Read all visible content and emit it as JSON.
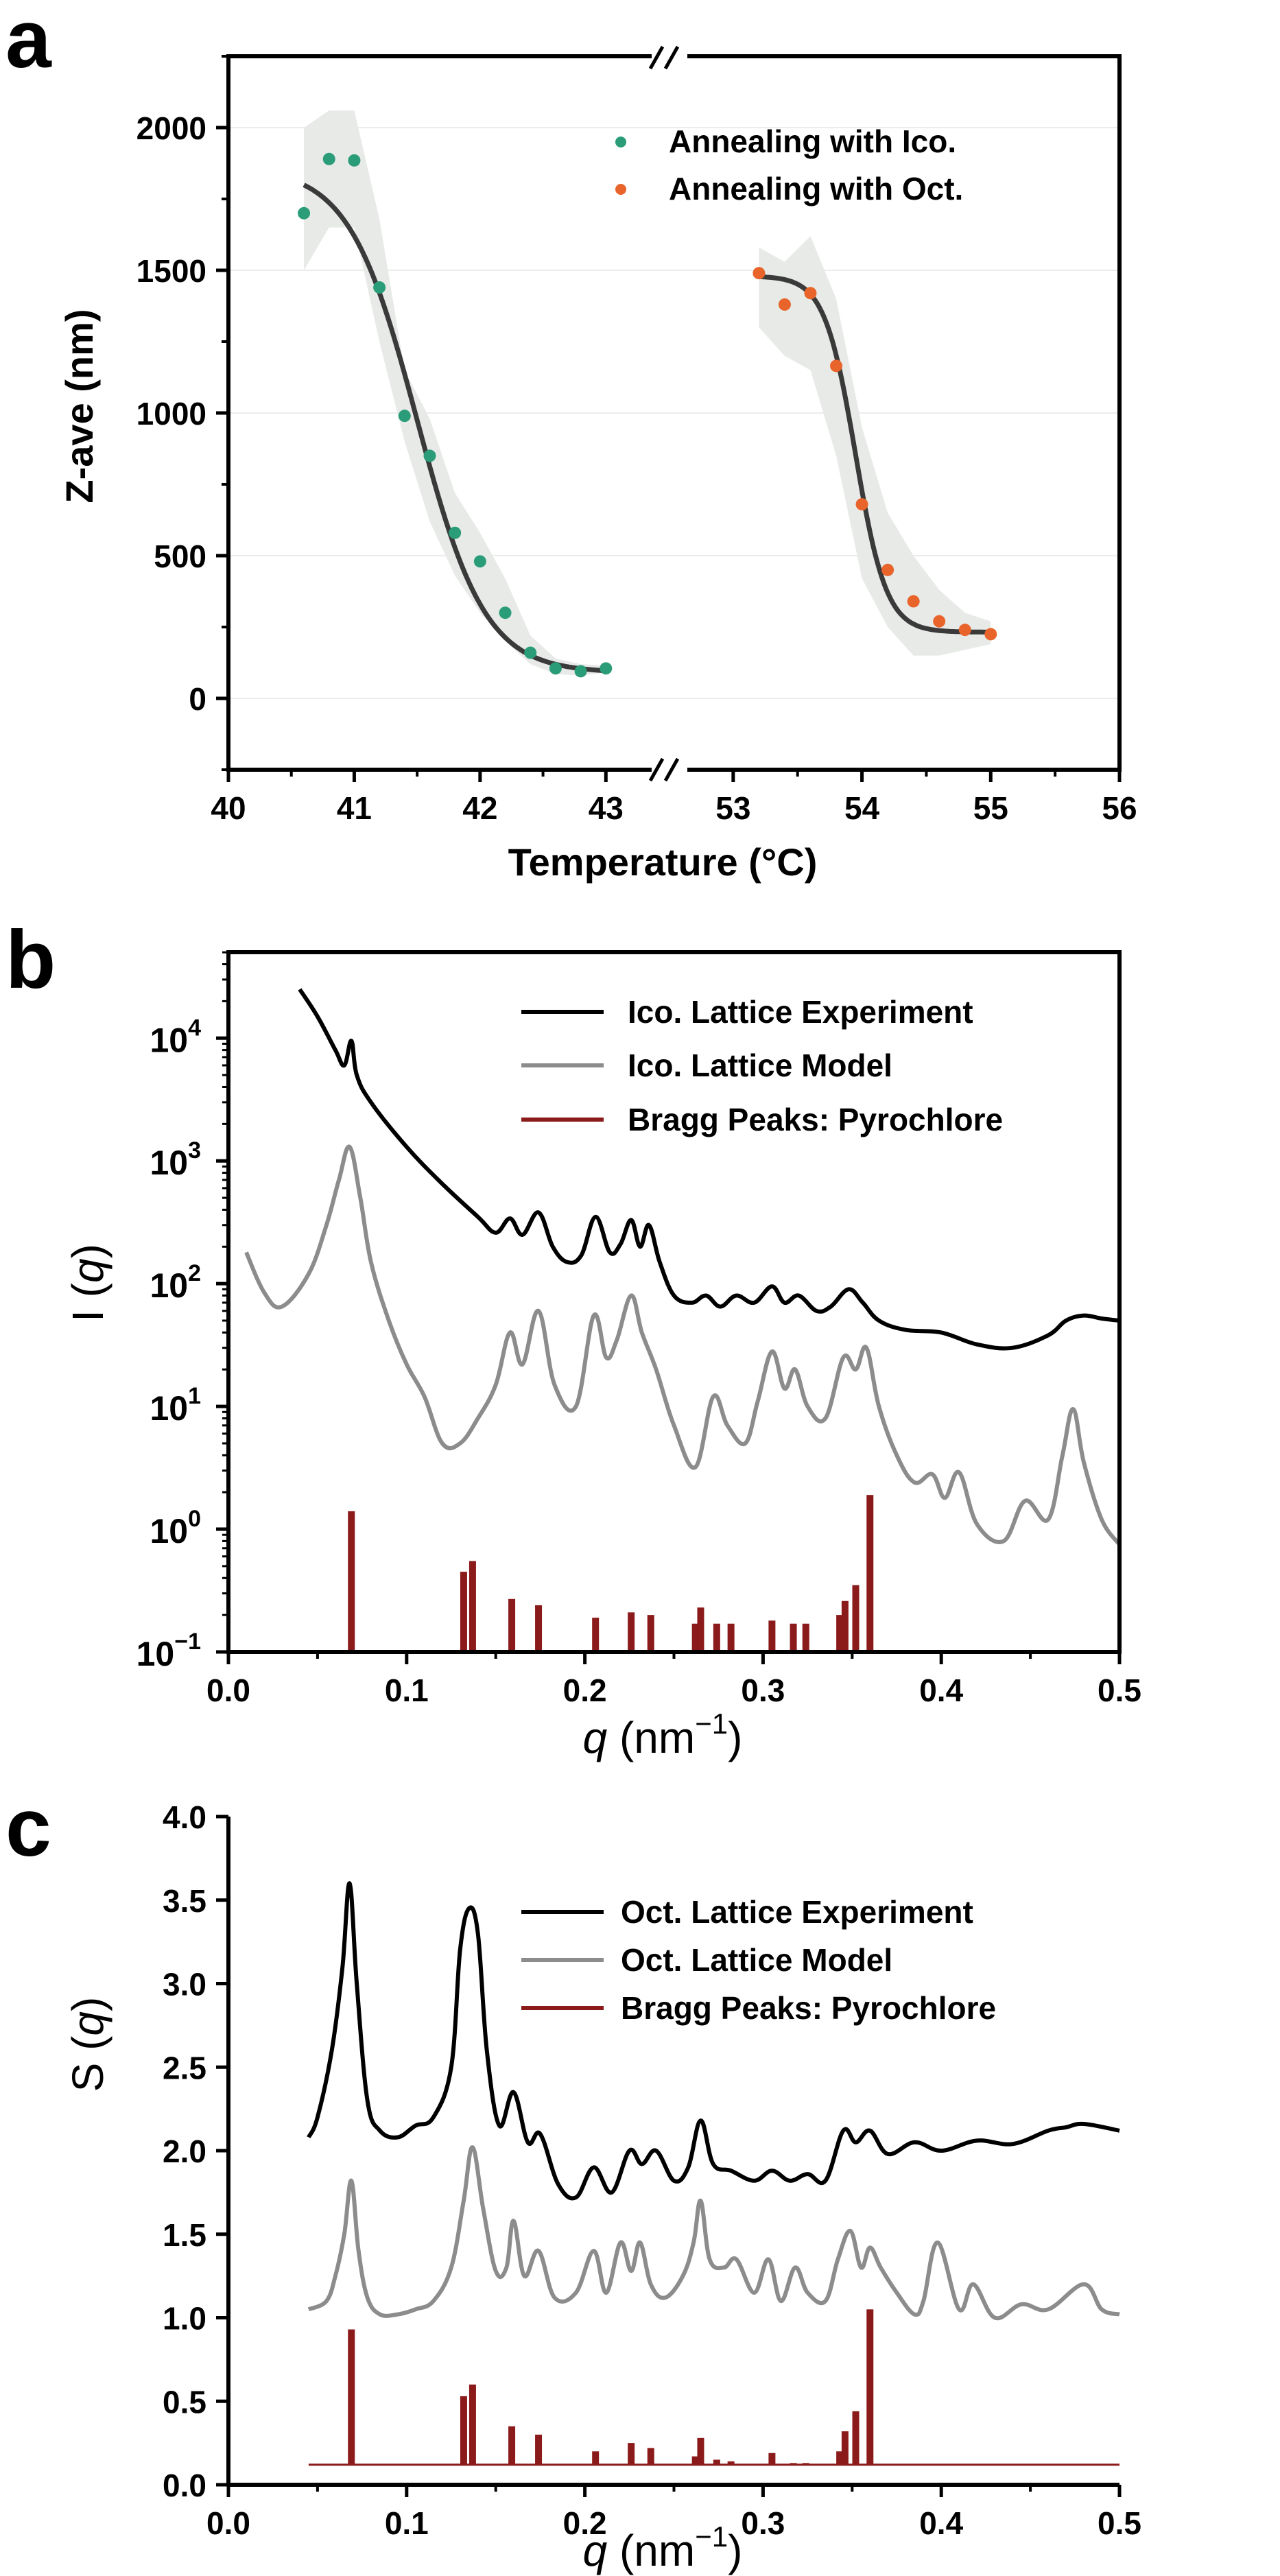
{
  "colors": {
    "green": "#2a9d78",
    "orange": "#e8642a",
    "fit": "#3a3a3a",
    "band": "#e8eae8",
    "exp": "#000000",
    "model": "#8c8c8c",
    "bragg": "#8b1a1a",
    "grid": "#ececec"
  },
  "chart_data": [
    {
      "panel": "a",
      "type": "scatter",
      "xlabel": "Temperature (°C)",
      "ylabel": "Z-ave (nm)",
      "x_ticks_left": [
        "40",
        "41",
        "42",
        "43"
      ],
      "x_ticks_right": [
        "53",
        "54",
        "55",
        "56"
      ],
      "x_break": "//",
      "xlim_left": [
        40,
        43.5
      ],
      "xlim_right": [
        52.5,
        56
      ],
      "ylim": [
        -250,
        2250
      ],
      "y_ticks": [
        "0",
        "500",
        "1000",
        "1500",
        "2000"
      ],
      "grid": true,
      "legend_position": "top-right",
      "series": [
        {
          "name": "Annealing with Ico.",
          "color": "green",
          "x": [
            40.6,
            40.8,
            41.0,
            41.2,
            41.4,
            41.6,
            41.8,
            42.0,
            42.2,
            42.4,
            42.6,
            42.8,
            43.0
          ],
          "y": [
            1700,
            1890,
            1885,
            1440,
            990,
            850,
            580,
            480,
            300,
            160,
            105,
            95,
            105
          ],
          "fit": {
            "type": "sigmoid",
            "top": 1860,
            "bottom": 90,
            "x0": 41.5,
            "k": 0.27,
            "x_range": [
              40.6,
              43.0
            ]
          },
          "band_upper": [
            2000,
            2060,
            2060,
            1680,
            1150,
            980,
            720,
            580,
            420,
            220,
            140,
            120,
            115
          ],
          "band_lower": [
            1500,
            1650,
            1650,
            1250,
            900,
            620,
            430,
            300,
            200,
            120,
            85,
            80,
            90
          ]
        },
        {
          "name": "Annealing with Oct.",
          "color": "orange",
          "x": [
            53.2,
            53.4,
            53.6,
            53.8,
            54.0,
            54.2,
            54.4,
            54.6,
            54.8,
            55.0
          ],
          "y": [
            1490,
            1380,
            1420,
            1165,
            680,
            450,
            340,
            270,
            240,
            225
          ],
          "fit": {
            "type": "sigmoid",
            "top": 1480,
            "bottom": 232,
            "x0": 53.95,
            "k": 0.12,
            "x_range": [
              53.2,
              55.0
            ]
          },
          "band_upper": [
            1580,
            1530,
            1620,
            1400,
            950,
            650,
            500,
            380,
            300,
            270
          ],
          "band_lower": [
            1300,
            1200,
            1150,
            850,
            420,
            250,
            150,
            150,
            170,
            190
          ]
        }
      ]
    },
    {
      "panel": "b",
      "type": "line",
      "xlabel": "q (nm−1)",
      "ylabel": "I (q)",
      "yscale": "log",
      "xlim": [
        0,
        0.5
      ],
      "ylim_exp10": [
        -1,
        4.7
      ],
      "x_ticks": [
        "0.0",
        "0.1",
        "0.2",
        "0.3",
        "0.4",
        "0.5"
      ],
      "y_tick_exponents": [
        "−1",
        "0",
        "1",
        "2",
        "3",
        "4"
      ],
      "legend_position": "top-right",
      "series": [
        {
          "name": "Ico. Lattice Experiment",
          "color": "exp",
          "x": [
            0.04,
            0.05,
            0.06,
            0.065,
            0.069,
            0.072,
            0.08,
            0.1,
            0.12,
            0.14,
            0.15,
            0.158,
            0.165,
            0.174,
            0.182,
            0.19,
            0.198,
            0.206,
            0.214,
            0.22,
            0.226,
            0.231,
            0.236,
            0.242,
            0.25,
            0.26,
            0.268,
            0.276,
            0.285,
            0.295,
            0.305,
            0.312,
            0.32,
            0.33,
            0.338,
            0.348,
            0.356,
            0.365,
            0.38,
            0.4,
            0.42,
            0.44,
            0.46,
            0.47,
            0.48,
            0.49,
            0.5
          ],
          "y": [
            25000,
            15000,
            8000,
            6000,
            9500,
            5000,
            3000,
            1300,
            650,
            350,
            260,
            340,
            250,
            380,
            200,
            150,
            170,
            350,
            180,
            210,
            330,
            200,
            300,
            150,
            80,
            70,
            80,
            65,
            80,
            70,
            95,
            70,
            80,
            60,
            65,
            90,
            70,
            50,
            42,
            40,
            32,
            30,
            38,
            50,
            55,
            52,
            50
          ]
        },
        {
          "name": "Ico. Lattice Model",
          "color": "model",
          "x": [
            0.01,
            0.02,
            0.03,
            0.045,
            0.055,
            0.062,
            0.068,
            0.074,
            0.08,
            0.09,
            0.1,
            0.11,
            0.12,
            0.13,
            0.14,
            0.15,
            0.158,
            0.165,
            0.174,
            0.183,
            0.195,
            0.205,
            0.212,
            0.218,
            0.226,
            0.232,
            0.24,
            0.25,
            0.262,
            0.272,
            0.28,
            0.29,
            0.297,
            0.305,
            0.312,
            0.318,
            0.325,
            0.335,
            0.345,
            0.352,
            0.358,
            0.365,
            0.375,
            0.385,
            0.395,
            0.402,
            0.41,
            0.42,
            0.435,
            0.447,
            0.46,
            0.468,
            0.474,
            0.48,
            0.49,
            0.5
          ],
          "y": [
            180,
            85,
            65,
            120,
            300,
            700,
            1300,
            500,
            150,
            50,
            22,
            12,
            5,
            5,
            8,
            15,
            40,
            22,
            60,
            15,
            10,
            55,
            25,
            35,
            80,
            40,
            20,
            7,
            3.2,
            12,
            7,
            5,
            11,
            28,
            14,
            20,
            10,
            8,
            25,
            20,
            30,
            10,
            4,
            2.4,
            2.8,
            1.8,
            2.9,
            1.1,
            0.8,
            1.7,
            1.2,
            4,
            9.5,
            3.5,
            1.2,
            0.75
          ]
        },
        {
          "name": "Bragg Peaks: Pyrochlore",
          "color": "bragg",
          "type": "bar",
          "x": [
            0.069,
            0.132,
            0.137,
            0.159,
            0.174,
            0.206,
            0.226,
            0.237,
            0.262,
            0.265,
            0.274,
            0.282,
            0.305,
            0.317,
            0.324,
            0.343,
            0.346,
            0.352,
            0.36
          ],
          "y": [
            1.4,
            0.45,
            0.55,
            0.27,
            0.24,
            0.19,
            0.21,
            0.2,
            0.17,
            0.23,
            0.17,
            0.17,
            0.18,
            0.17,
            0.17,
            0.2,
            0.26,
            0.35,
            1.9
          ]
        }
      ]
    },
    {
      "panel": "c",
      "type": "line",
      "xlabel": "q (nm−1)",
      "ylabel": "S (q)",
      "xlim": [
        0,
        0.5
      ],
      "ylim": [
        0.0,
        4.0
      ],
      "x_ticks": [
        "0.0",
        "0.1",
        "0.2",
        "0.3",
        "0.4",
        "0.5"
      ],
      "y_ticks": [
        "0.0",
        "0.5",
        "1.0",
        "1.5",
        "2.0",
        "2.5",
        "3.0",
        "3.5",
        "4.0"
      ],
      "legend_position": "top-right",
      "series": [
        {
          "name": "Oct. Lattice Experiment",
          "color": "exp",
          "x": [
            0.045,
            0.05,
            0.058,
            0.064,
            0.068,
            0.072,
            0.078,
            0.085,
            0.095,
            0.105,
            0.115,
            0.125,
            0.13,
            0.135,
            0.14,
            0.145,
            0.152,
            0.16,
            0.168,
            0.175,
            0.185,
            0.195,
            0.205,
            0.215,
            0.225,
            0.232,
            0.24,
            0.25,
            0.258,
            0.265,
            0.272,
            0.282,
            0.295,
            0.305,
            0.315,
            0.325,
            0.335,
            0.345,
            0.352,
            0.36,
            0.37,
            0.385,
            0.4,
            0.42,
            0.44,
            0.46,
            0.47,
            0.48,
            0.5
          ],
          "y": [
            2.08,
            2.2,
            2.6,
            3.1,
            3.6,
            3.0,
            2.3,
            2.12,
            2.08,
            2.15,
            2.2,
            2.5,
            3.2,
            3.45,
            3.3,
            2.6,
            2.15,
            2.35,
            2.05,
            2.1,
            1.8,
            1.72,
            1.9,
            1.75,
            2.0,
            1.92,
            2.0,
            1.82,
            1.9,
            2.18,
            1.92,
            1.88,
            1.82,
            1.88,
            1.82,
            1.86,
            1.82,
            2.12,
            2.05,
            2.12,
            1.98,
            2.05,
            2.0,
            2.06,
            2.04,
            2.12,
            2.14,
            2.16,
            2.12
          ]
        },
        {
          "name": "Oct. Lattice Model",
          "color": "model",
          "x": [
            0.045,
            0.055,
            0.06,
            0.065,
            0.069,
            0.073,
            0.078,
            0.085,
            0.095,
            0.105,
            0.115,
            0.125,
            0.132,
            0.137,
            0.143,
            0.15,
            0.156,
            0.16,
            0.166,
            0.174,
            0.183,
            0.195,
            0.205,
            0.212,
            0.22,
            0.226,
            0.231,
            0.237,
            0.245,
            0.255,
            0.261,
            0.265,
            0.27,
            0.278,
            0.285,
            0.295,
            0.303,
            0.31,
            0.318,
            0.325,
            0.335,
            0.342,
            0.349,
            0.355,
            0.36,
            0.366,
            0.375,
            0.385,
            0.39,
            0.398,
            0.41,
            0.418,
            0.43,
            0.445,
            0.46,
            0.48,
            0.49,
            0.5
          ],
          "y": [
            1.05,
            1.1,
            1.25,
            1.5,
            1.82,
            1.4,
            1.12,
            1.02,
            1.02,
            1.05,
            1.1,
            1.3,
            1.7,
            2.02,
            1.65,
            1.28,
            1.3,
            1.58,
            1.25,
            1.4,
            1.12,
            1.15,
            1.4,
            1.15,
            1.45,
            1.28,
            1.45,
            1.2,
            1.12,
            1.25,
            1.45,
            1.7,
            1.35,
            1.3,
            1.35,
            1.15,
            1.35,
            1.1,
            1.3,
            1.15,
            1.1,
            1.35,
            1.52,
            1.3,
            1.42,
            1.3,
            1.15,
            1.02,
            1.1,
            1.45,
            1.05,
            1.2,
            1.0,
            1.08,
            1.05,
            1.2,
            1.05,
            1.02
          ]
        },
        {
          "name": "Bragg Peaks: Pyrochlore",
          "color": "bragg",
          "type": "bar",
          "x": [
            0.069,
            0.132,
            0.137,
            0.159,
            0.174,
            0.206,
            0.226,
            0.237,
            0.262,
            0.265,
            0.274,
            0.282,
            0.305,
            0.317,
            0.324,
            0.343,
            0.346,
            0.352,
            0.36
          ],
          "y": [
            0.93,
            0.53,
            0.6,
            0.35,
            0.3,
            0.2,
            0.25,
            0.22,
            0.17,
            0.28,
            0.15,
            0.14,
            0.19,
            0.13,
            0.13,
            0.2,
            0.32,
            0.44,
            1.05
          ]
        }
      ]
    }
  ],
  "panel_labels": {
    "a": "a",
    "b": "b",
    "c": "c"
  },
  "legend_a": [
    "Annealing with Ico.",
    "Annealing with Oct."
  ],
  "legend_b": [
    "Ico. Lattice Experiment",
    "Ico. Lattice Model",
    "Bragg Peaks: Pyrochlore"
  ],
  "legend_c": [
    "Oct. Lattice Experiment",
    "Oct. Lattice Model",
    "Bragg Peaks: Pyrochlore"
  ],
  "axis_a": {
    "xlabel": "Temperature (°C)",
    "ylabel": "Z-ave (nm)",
    "break": "//"
  },
  "axis_b": {
    "xlabel_q": "q",
    "xlabel_unit": " (nm",
    "xlabel_sup": "−1",
    "xlabel_close": ")",
    "ylabel_pre": "I (",
    "ylabel_q": "q",
    "ylabel_post": ")",
    "exp_base": "10"
  },
  "axis_c": {
    "xlabel_q": "q",
    "xlabel_unit": " (nm",
    "xlabel_sup": "−1",
    "xlabel_close": ")",
    "ylabel_pre": "S (",
    "ylabel_q": "q",
    "ylabel_post": ")"
  }
}
